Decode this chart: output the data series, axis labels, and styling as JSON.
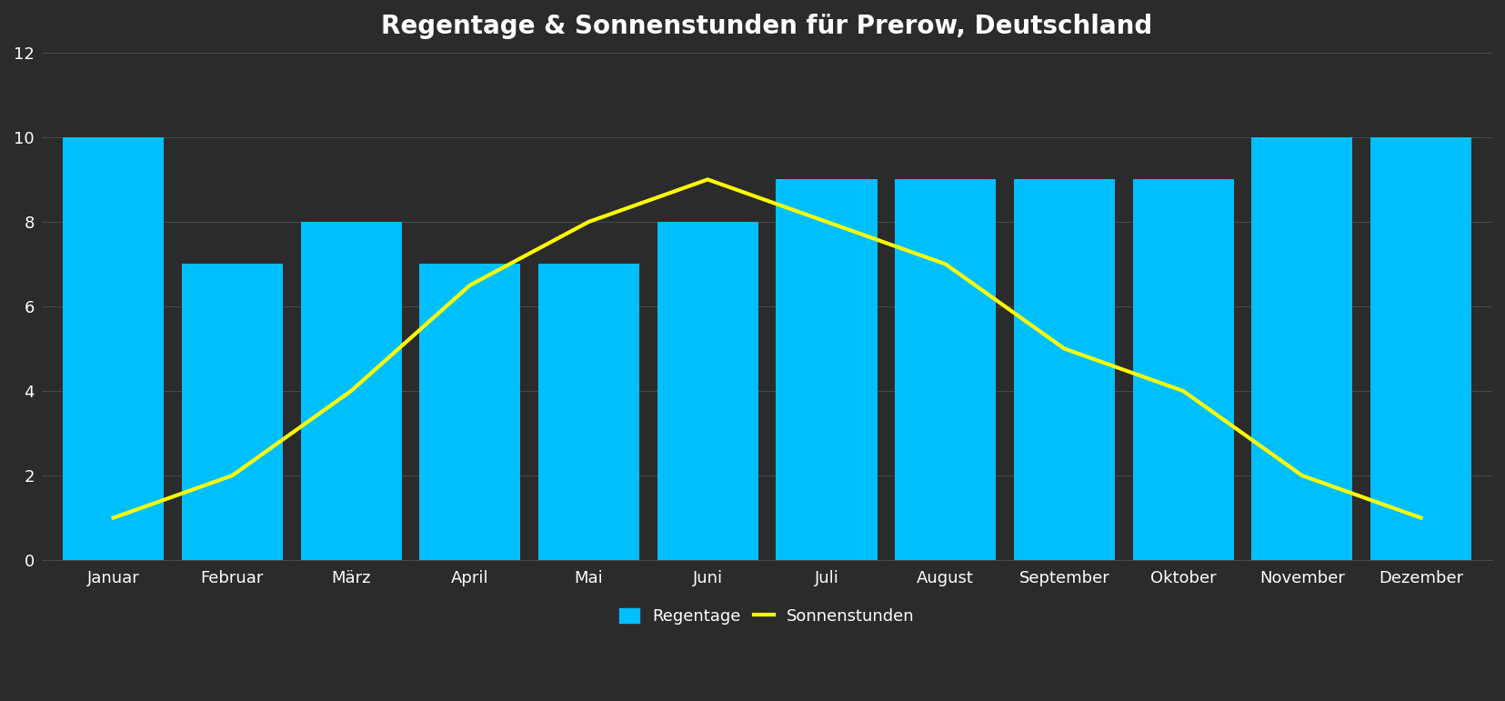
{
  "title": "Regentage & Sonnenstunden für Prerow, Deutschland",
  "months": [
    "Januar",
    "Februar",
    "März",
    "April",
    "Mai",
    "Juni",
    "Juli",
    "August",
    "September",
    "Oktober",
    "November",
    "Dezember"
  ],
  "regentage": [
    10,
    7,
    8,
    7,
    7,
    8,
    9,
    9,
    9,
    9,
    10,
    10
  ],
  "sonnenstunden": [
    1,
    2,
    4,
    6.5,
    8,
    9,
    8,
    7,
    5,
    4,
    2,
    1
  ],
  "bar_color": "#00BFFF",
  "line_color": "#FFFF00",
  "background_color": "#2b2b2b",
  "text_color": "#ffffff",
  "grid_color": "#4a4a4a",
  "ylim": [
    0,
    12
  ],
  "yticks": [
    0,
    2,
    4,
    6,
    8,
    10,
    12
  ],
  "title_fontsize": 20,
  "tick_fontsize": 13,
  "legend_fontsize": 13,
  "line_width": 3,
  "bar_width": 0.85
}
